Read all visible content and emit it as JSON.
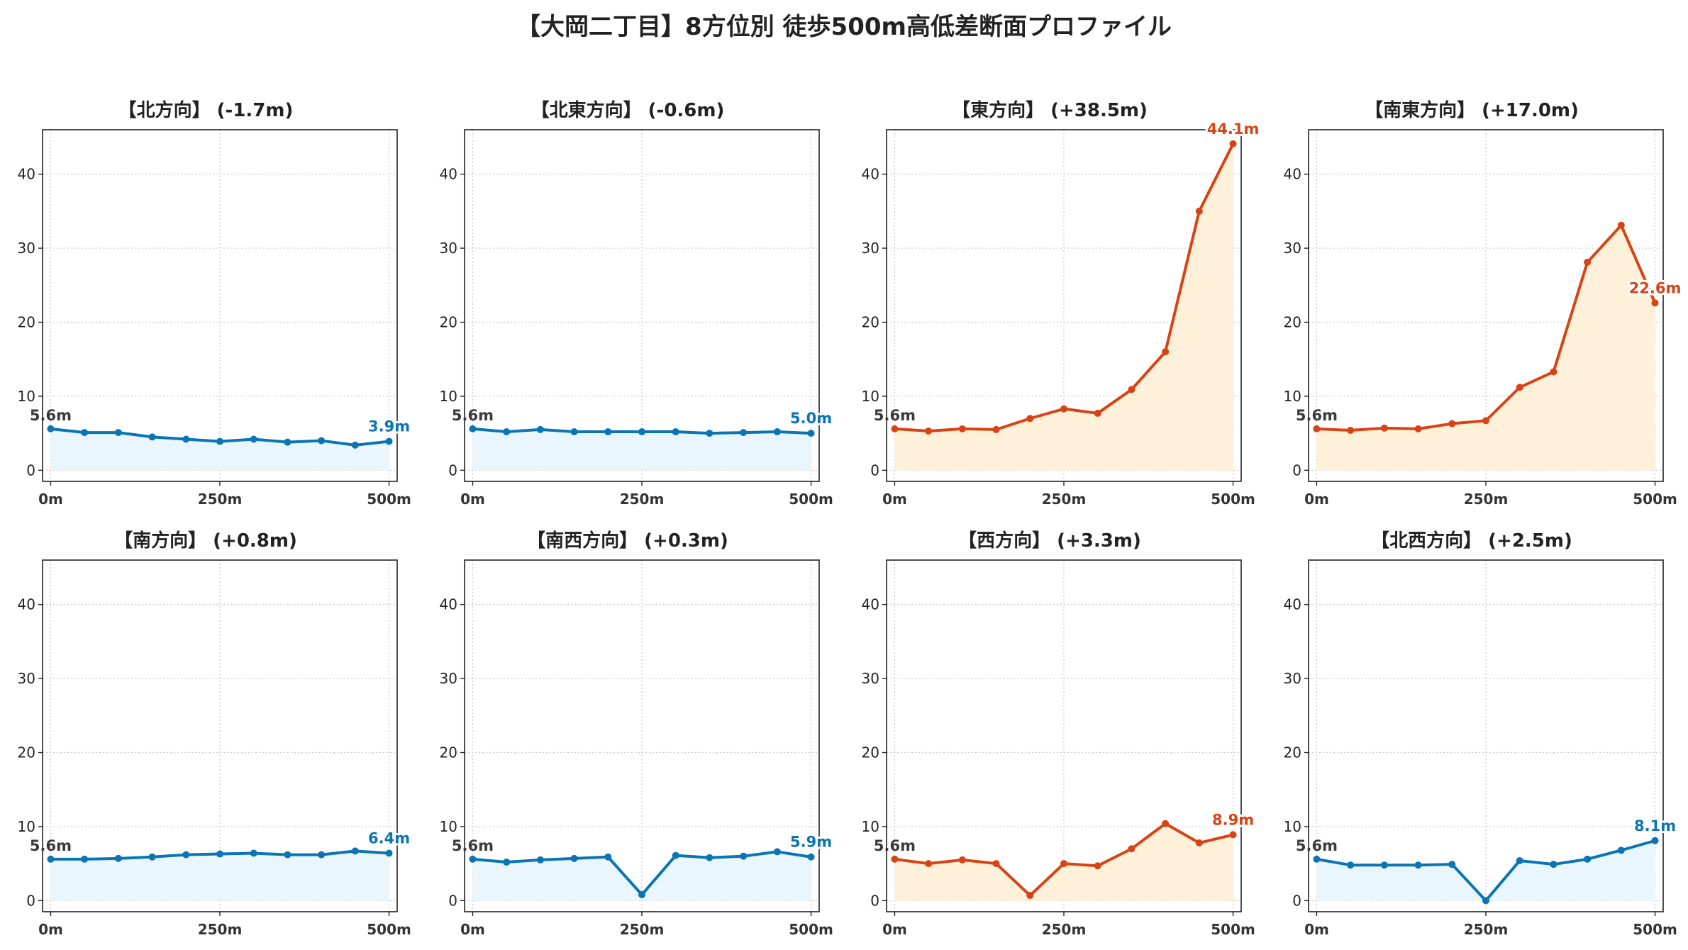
{
  "title": "【大岡二丁目】8方位別 徒歩500m高低差断面プロファイル",
  "colors": {
    "rise": "#d84315",
    "fall": "#0a74b4",
    "rise_fill": "#fff0d9",
    "fall_fill": "#eaf6fd",
    "start_label": "#3a3a3a"
  },
  "chart_data": [
    {
      "type": "area",
      "title": "【北方向】 (-1.7m)",
      "x": [
        0,
        50,
        100,
        150,
        200,
        250,
        300,
        350,
        400,
        450,
        500
      ],
      "y": [
        5.6,
        5.1,
        5.1,
        4.5,
        4.2,
        3.9,
        4.2,
        3.8,
        4.0,
        3.4,
        3.9
      ],
      "xticks": [
        "0m",
        "250m",
        "500m"
      ],
      "yticks": [
        0,
        10,
        20,
        30,
        40
      ],
      "ylim": [
        -1.5,
        46
      ],
      "xlim": [
        -12,
        512
      ],
      "start_label": "5.6m",
      "end_label": "3.9m",
      "trend": "fall",
      "grid": true
    },
    {
      "type": "area",
      "title": "【北東方向】 (-0.6m)",
      "x": [
        0,
        50,
        100,
        150,
        200,
        250,
        300,
        350,
        400,
        450,
        500
      ],
      "y": [
        5.6,
        5.2,
        5.5,
        5.2,
        5.2,
        5.2,
        5.2,
        5.0,
        5.1,
        5.2,
        5.0
      ],
      "xticks": [
        "0m",
        "250m",
        "500m"
      ],
      "yticks": [
        0,
        10,
        20,
        30,
        40
      ],
      "ylim": [
        -1.5,
        46
      ],
      "xlim": [
        -12,
        512
      ],
      "start_label": "5.6m",
      "end_label": "5.0m",
      "trend": "fall",
      "grid": true
    },
    {
      "type": "area",
      "title": "【東方向】 (+38.5m)",
      "x": [
        0,
        50,
        100,
        150,
        200,
        250,
        300,
        350,
        400,
        450,
        500
      ],
      "y": [
        5.6,
        5.3,
        5.6,
        5.5,
        7.0,
        8.3,
        7.7,
        10.9,
        16.0,
        35.0,
        44.1
      ],
      "xticks": [
        "0m",
        "250m",
        "500m"
      ],
      "yticks": [
        0,
        10,
        20,
        30,
        40
      ],
      "ylim": [
        -1.5,
        46
      ],
      "xlim": [
        -12,
        512
      ],
      "start_label": "5.6m",
      "end_label": "44.1m",
      "trend": "rise",
      "grid": true
    },
    {
      "type": "area",
      "title": "【南東方向】 (+17.0m)",
      "x": [
        0,
        50,
        100,
        150,
        200,
        250,
        300,
        350,
        400,
        450,
        500
      ],
      "y": [
        5.6,
        5.4,
        5.7,
        5.6,
        6.3,
        6.7,
        11.2,
        13.3,
        28.1,
        33.1,
        22.6
      ],
      "xticks": [
        "0m",
        "250m",
        "500m"
      ],
      "yticks": [
        0,
        10,
        20,
        30,
        40
      ],
      "ylim": [
        -1.5,
        46
      ],
      "xlim": [
        -12,
        512
      ],
      "start_label": "5.6m",
      "end_label": "22.6m",
      "trend": "rise",
      "grid": true
    },
    {
      "type": "area",
      "title": "【南方向】 (+0.8m)",
      "x": [
        0,
        50,
        100,
        150,
        200,
        250,
        300,
        350,
        400,
        450,
        500
      ],
      "y": [
        5.6,
        5.6,
        5.7,
        5.9,
        6.2,
        6.3,
        6.4,
        6.2,
        6.2,
        6.7,
        6.4
      ],
      "xticks": [
        "0m",
        "250m",
        "500m"
      ],
      "yticks": [
        0,
        10,
        20,
        30,
        40
      ],
      "ylim": [
        -1.5,
        46
      ],
      "xlim": [
        -12,
        512
      ],
      "start_label": "5.6m",
      "end_label": "6.4m",
      "trend": "fall",
      "grid": true
    },
    {
      "type": "area",
      "title": "【南西方向】 (+0.3m)",
      "x": [
        0,
        50,
        100,
        150,
        200,
        250,
        300,
        350,
        400,
        450,
        500
      ],
      "y": [
        5.6,
        5.2,
        5.5,
        5.7,
        5.9,
        0.8,
        6.1,
        5.8,
        6.0,
        6.6,
        5.9
      ],
      "xticks": [
        "0m",
        "250m",
        "500m"
      ],
      "yticks": [
        0,
        10,
        20,
        30,
        40
      ],
      "ylim": [
        -1.5,
        46
      ],
      "xlim": [
        -12,
        512
      ],
      "start_label": "5.6m",
      "end_label": "5.9m",
      "trend": "fall",
      "grid": true
    },
    {
      "type": "area",
      "title": "【西方向】 (+3.3m)",
      "x": [
        0,
        50,
        100,
        150,
        200,
        250,
        300,
        350,
        400,
        450,
        500
      ],
      "y": [
        5.6,
        5.0,
        5.5,
        5.0,
        0.7,
        5.0,
        4.7,
        7.0,
        10.4,
        7.8,
        8.9
      ],
      "xticks": [
        "0m",
        "250m",
        "500m"
      ],
      "yticks": [
        0,
        10,
        20,
        30,
        40
      ],
      "ylim": [
        -1.5,
        46
      ],
      "xlim": [
        -12,
        512
      ],
      "start_label": "5.6m",
      "end_label": "8.9m",
      "trend": "rise",
      "grid": true
    },
    {
      "type": "area",
      "title": "【北西方向】 (+2.5m)",
      "x": [
        0,
        50,
        100,
        150,
        200,
        250,
        300,
        350,
        400,
        450,
        500
      ],
      "y": [
        5.6,
        4.8,
        4.8,
        4.8,
        4.9,
        0.0,
        5.4,
        4.9,
        5.6,
        6.8,
        8.1
      ],
      "xticks": [
        "0m",
        "250m",
        "500m"
      ],
      "yticks": [
        0,
        10,
        20,
        30,
        40
      ],
      "ylim": [
        -1.5,
        46
      ],
      "xlim": [
        -12,
        512
      ],
      "start_label": "5.6m",
      "end_label": "8.1m",
      "trend": "fall",
      "grid": true
    }
  ]
}
